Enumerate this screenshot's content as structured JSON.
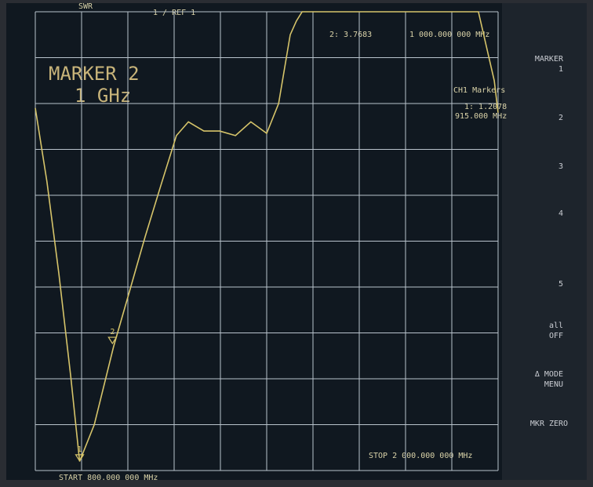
{
  "chart_data": {
    "type": "line",
    "title": "MARKER 2",
    "subtitle": "1 GHz",
    "format": "SWR",
    "scale": "1 / REF 1",
    "marker_readout": [
      "2: 3.7683",
      "1 000.000 000 MHz"
    ],
    "marker_list_title": "CH1 Markers",
    "marker_list": [
      "1: 1.2078",
      "915.000 MHz"
    ],
    "start": "START 800.000 000 MHz",
    "stop": "STOP 2 000.000 000 MHz",
    "xlim": [
      800,
      2000
    ],
    "ylim": [
      1,
      11
    ],
    "grid": true,
    "color": "#d6c46a",
    "x": [
      800,
      830,
      861,
      892,
      915,
      953,
      1003,
      1044,
      1085,
      1125,
      1166,
      1197,
      1237,
      1278,
      1319,
      1359,
      1400,
      1431,
      1461,
      1477,
      1492,
      1949,
      1990,
      2000
    ],
    "values": [
      8.9,
      7.3,
      5.3,
      3.05,
      1.2,
      2.0,
      3.7,
      4.9,
      6.1,
      7.2,
      8.3,
      8.6,
      8.4,
      8.4,
      8.3,
      8.6,
      8.35,
      9.0,
      10.5,
      10.8,
      11,
      11,
      9.5,
      8.8
    ],
    "markers": [
      {
        "label": "1",
        "x": 915,
        "y": 1.2078
      },
      {
        "label": "2",
        "x": 1000,
        "y": 3.7683
      }
    ],
    "softkeys": [
      "MARKER",
      "1",
      "2",
      "3",
      "4",
      "5",
      "all",
      "OFF",
      "Δ MODE",
      "MENU",
      "MKR ZERO"
    ]
  }
}
